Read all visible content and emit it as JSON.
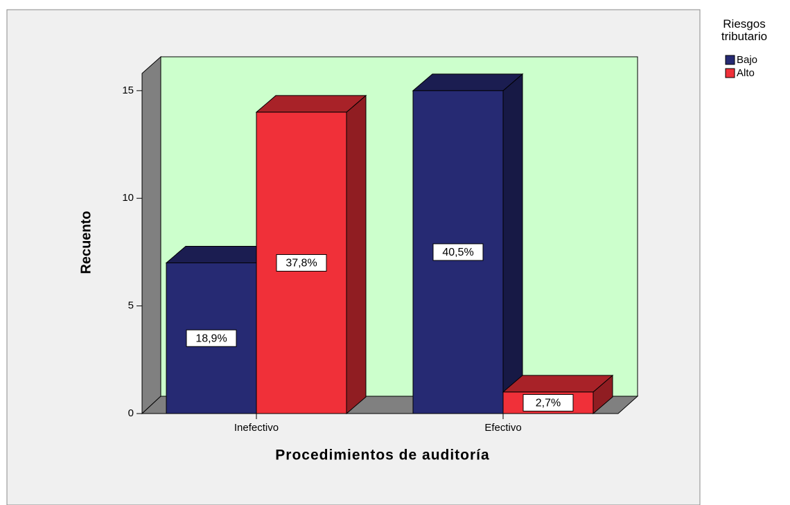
{
  "chart_data": {
    "type": "bar3d",
    "categories": [
      "Inefectivo",
      "Efectivo"
    ],
    "x_label": "Procedimientos de auditoría",
    "y_label": "Recuento",
    "legend_title": "Riesgos tributario",
    "series": [
      {
        "name": "Bajo",
        "color": "#262a73",
        "values": [
          7,
          15
        ],
        "labels": [
          "18,9%",
          "40,5%"
        ]
      },
      {
        "name": "Alto",
        "color": "#f03039",
        "values": [
          14,
          1
        ],
        "labels": [
          "37,8%",
          "2,7%"
        ]
      }
    ],
    "ylim": [
      0,
      15.8
    ],
    "yticks": [
      0,
      5,
      10,
      15
    ],
    "legend": "right"
  }
}
